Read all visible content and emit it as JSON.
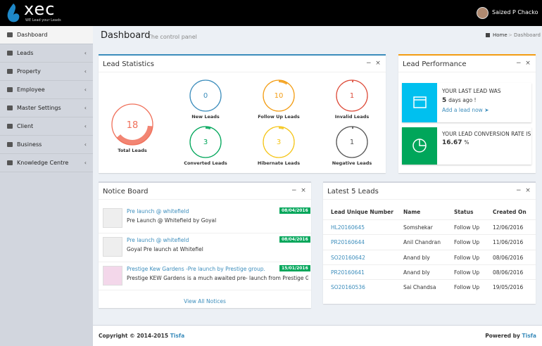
{
  "header": {
    "logo": "xec",
    "tagline": "WE Lead your Leads",
    "user": "Saized P Chacko"
  },
  "sidebar": [
    "Dashboard",
    "Leads",
    "Property",
    "Employee",
    "Master Settings",
    "Client",
    "Business",
    "Knowledge Centre"
  ],
  "page": {
    "title": "Dashboard",
    "subtitle": "The control panel",
    "breadcrumb": [
      "Home",
      "Dashboard"
    ]
  },
  "lead_statistics": {
    "title": "Lead Statistics",
    "total": {
      "label": "Total Leads",
      "value": "18"
    },
    "items": [
      {
        "label": "New Leads",
        "value": "0"
      },
      {
        "label": "Follow Up Leads",
        "value": "10"
      },
      {
        "label": "Invalid Leads",
        "value": "1"
      },
      {
        "label": "Converted Leads",
        "value": "3"
      },
      {
        "label": "Hibernate Leads",
        "value": "3"
      },
      {
        "label": "Negative Leads",
        "value": "1"
      }
    ]
  },
  "lead_performance": {
    "title": "Lead Performance",
    "last_lead_heading": "YOUR LAST LEAD WAS",
    "last_lead_value": "5",
    "last_lead_text": "days ago !",
    "add_link": "Add a lead now",
    "conversion_heading": "YOUR LEAD CONVERSION RATE IS",
    "conversion_value": "16.67",
    "conversion_unit": "%"
  },
  "notice_board": {
    "title": "Notice Board",
    "items": [
      {
        "title": "Pre launch @ whitefield",
        "date": "08/04/2016",
        "text": "Pre Launch @ Whitefield by Goyal"
      },
      {
        "title": "Pre launch @ whitefield",
        "date": "08/04/2016",
        "text": "Goyal Pre launch at Whitefiel"
      },
      {
        "title": "Prestige Kew Gardens -Pre launch by Prestige group.",
        "date": "15/01/2016",
        "text": "Prestige KEW Gardens is a much awaited pre- launch from Prestige Group. ..."
      }
    ],
    "view_all": "View All Notices"
  },
  "latest_leads": {
    "title": "Latest 5 Leads",
    "columns": [
      "Lead Unique Number",
      "Name",
      "Status",
      "Created On"
    ],
    "rows": [
      [
        "HL20160645",
        "Somshekar",
        "Follow Up",
        "12/06/2016"
      ],
      [
        "PR20160644",
        "Anil Chandran",
        "Follow Up",
        "11/06/2016"
      ],
      [
        "SO20160642",
        "Anand bly",
        "Follow Up",
        "08/06/2016"
      ],
      [
        "PR20160641",
        "Anand bly",
        "Follow Up",
        "08/06/2016"
      ],
      [
        "SO20160536",
        "Sai Chandsa",
        "Follow Up",
        "19/05/2016"
      ]
    ]
  },
  "footer": {
    "copyright": "Copyright © 2014-2015",
    "company": "Tisfa",
    "powered": "Powered by",
    "powered_company": "Tisfa"
  }
}
